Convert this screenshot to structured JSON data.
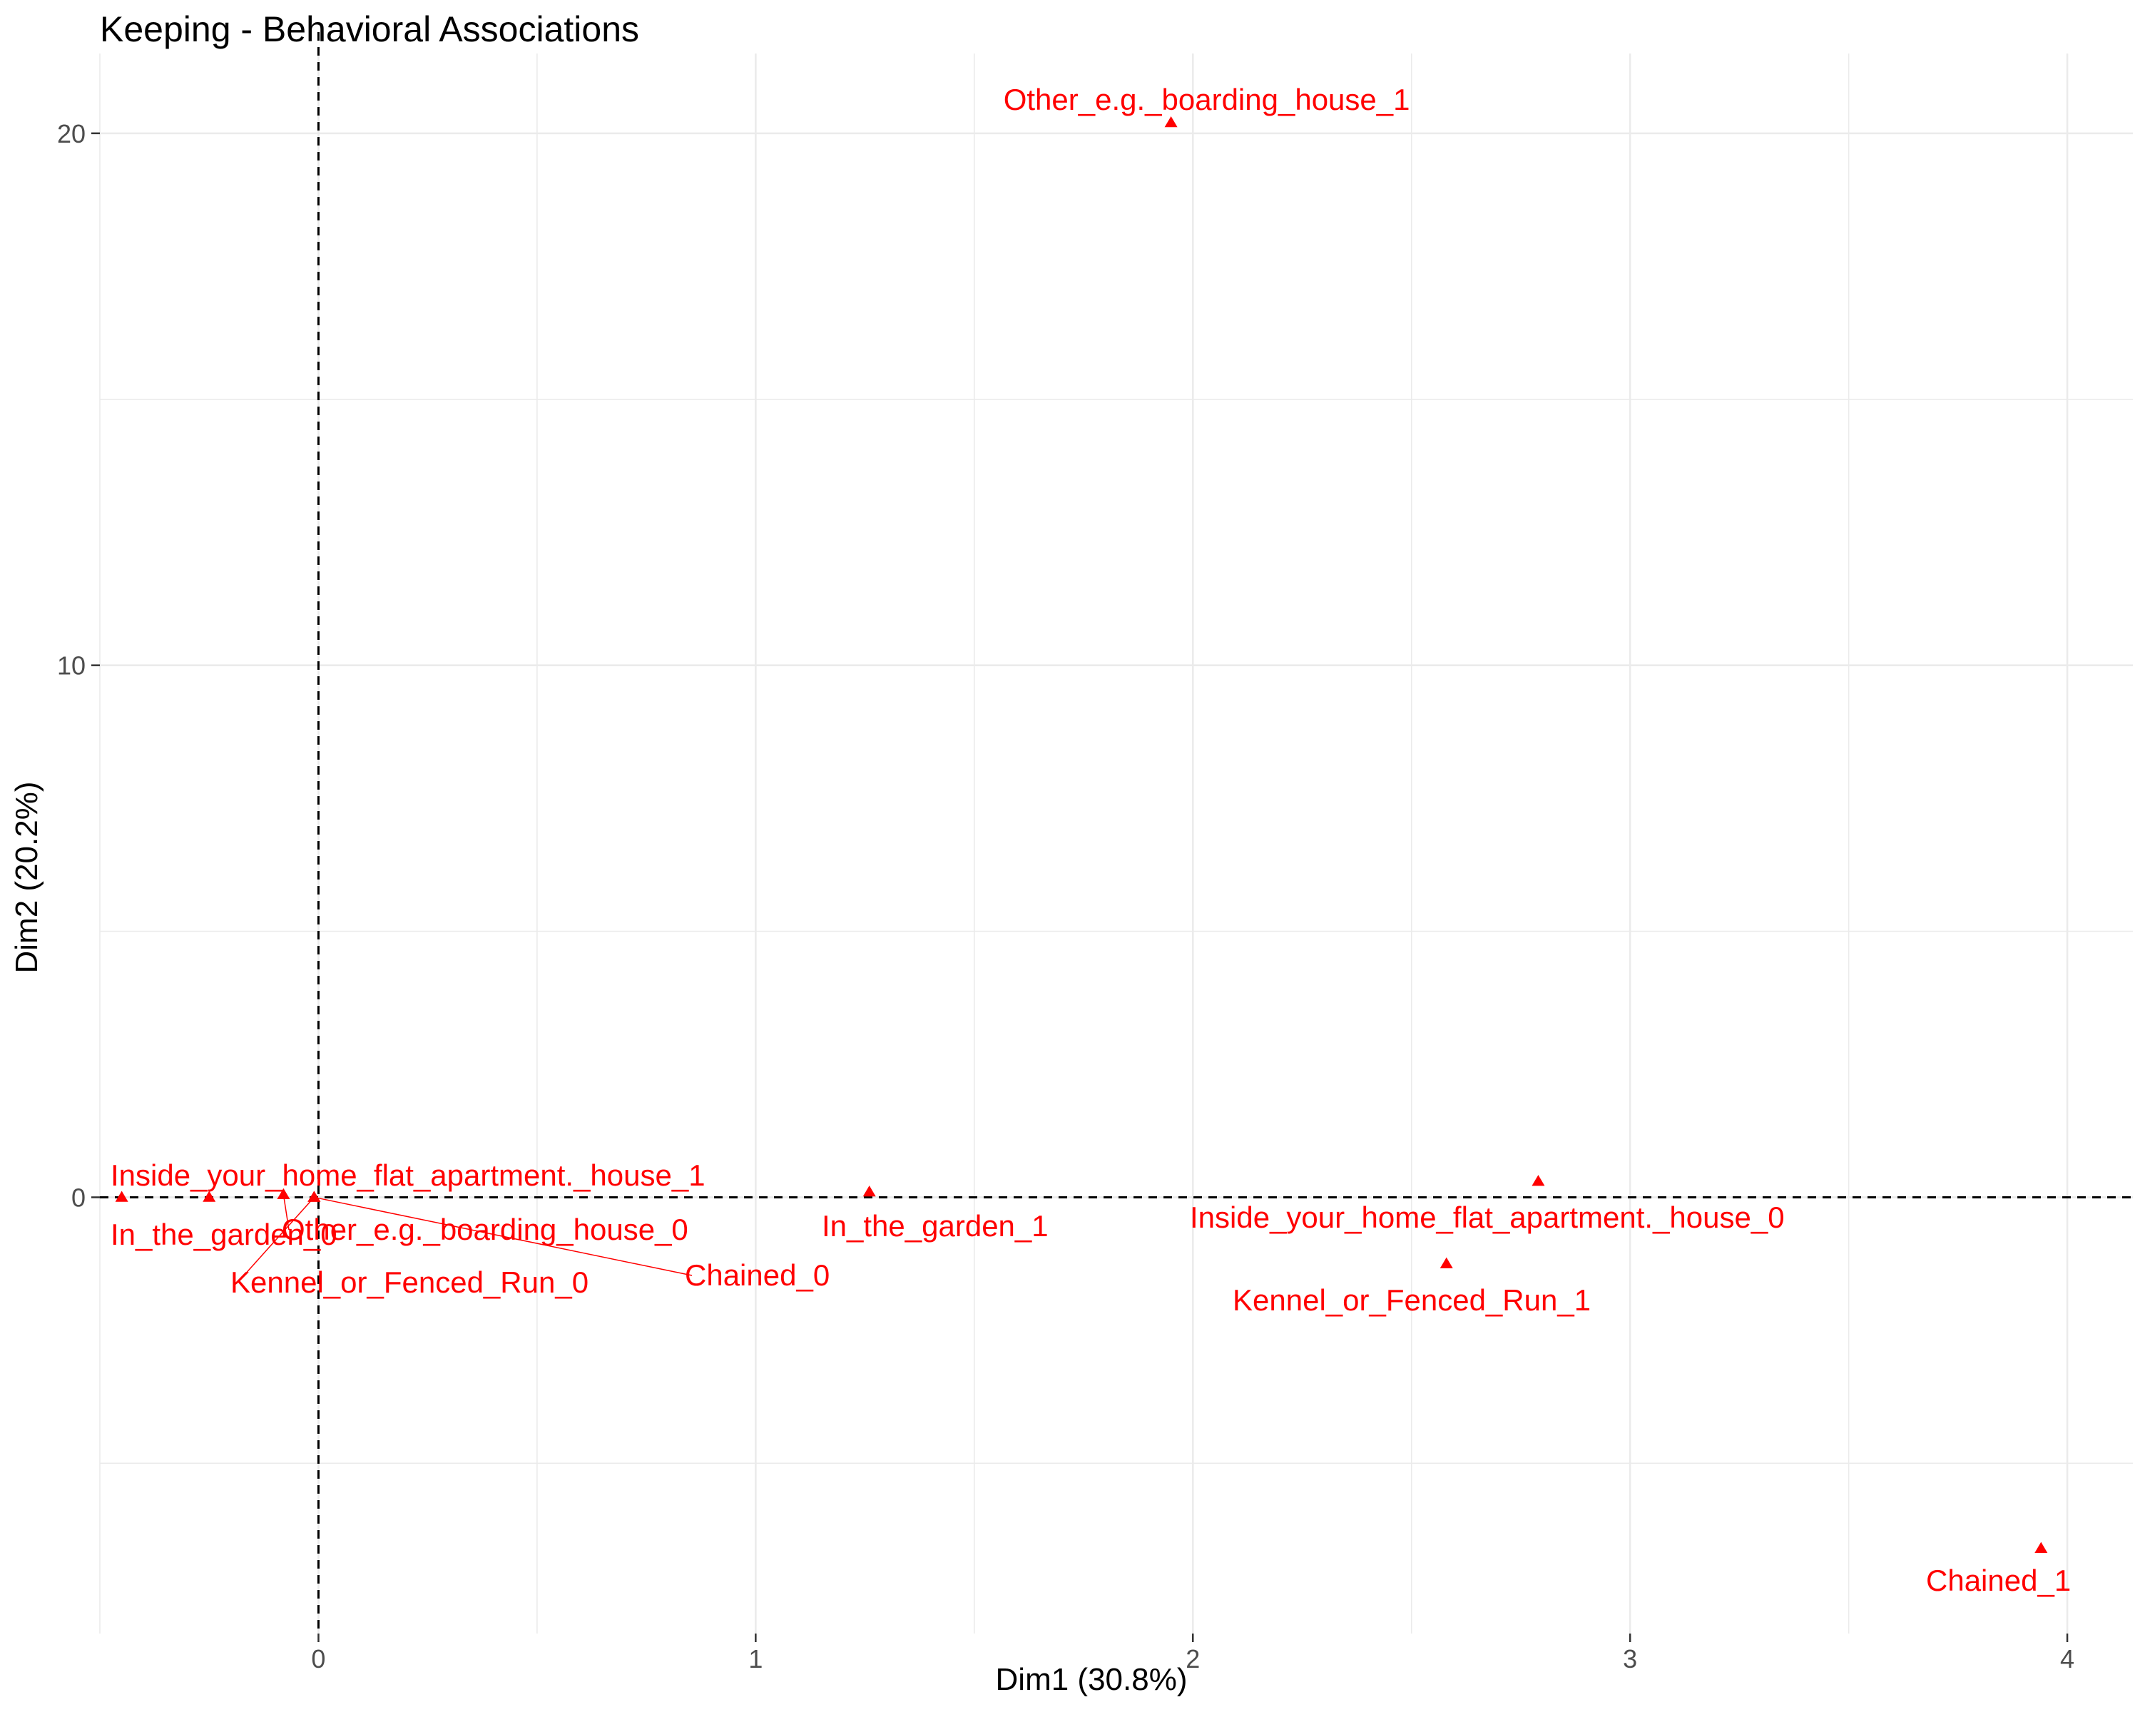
{
  "chart_data": {
    "type": "scatter",
    "title": "Keeping - Behavioral Associations",
    "xlabel": "Dim1 (30.8%)",
    "ylabel": "Dim2 (20.2%)",
    "xlim": [
      -0.5,
      4.15
    ],
    "ylim": [
      -8.2,
      21.5
    ],
    "x_ticks": [
      0,
      1,
      2,
      3,
      4
    ],
    "y_ticks": [
      0,
      10,
      20
    ],
    "grid": true,
    "reference_lines": {
      "x": 0,
      "y": 0,
      "style": "dashed"
    },
    "point_color": "#ff0000",
    "marker": "triangle",
    "points": [
      {
        "label": "Other_e.g._boarding_house_1",
        "x": 1.95,
        "y": 20.2
      },
      {
        "label": "Inside_your_home_flat_apartment._house_1",
        "x": -0.45,
        "y": 0.0
      },
      {
        "label": "In_the_garden_0",
        "x": -0.25,
        "y": 0.0
      },
      {
        "label": "Other_e.g._boarding_house_0",
        "x": -0.08,
        "y": 0.05
      },
      {
        "label": "Kennel_or_Fenced_Run_0",
        "x": -0.01,
        "y": 0.0
      },
      {
        "label": "Chained_0",
        "x": -0.01,
        "y": 0.0
      },
      {
        "label": "In_the_garden_1",
        "x": 1.26,
        "y": 0.1
      },
      {
        "label": "Inside_your_home_flat_apartment._house_0",
        "x": 2.79,
        "y": 0.3
      },
      {
        "label": "Kennel_or_Fenced_Run_1",
        "x": 2.58,
        "y": -1.25
      },
      {
        "label": "Chained_1",
        "x": 3.94,
        "y": -6.6
      }
    ]
  }
}
